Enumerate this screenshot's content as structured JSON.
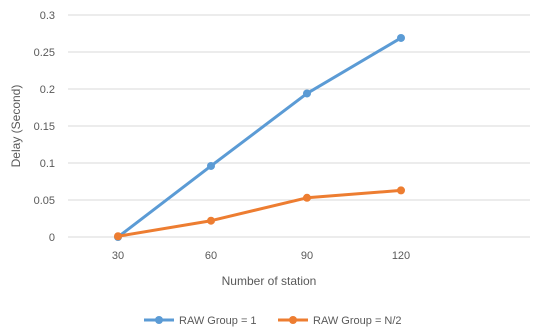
{
  "chart_data": {
    "type": "line",
    "x": [
      30,
      60,
      90,
      120
    ],
    "categories": [
      "30",
      "60",
      "90",
      "120"
    ],
    "series": [
      {
        "name": "RAW Group = 1",
        "values": [
          0.0,
          0.096,
          0.194,
          0.269
        ],
        "color": "#5b9bd5"
      },
      {
        "name": "RAW Group = N/2",
        "values": [
          0.001,
          0.022,
          0.053,
          0.063
        ],
        "color": "#ed7d31"
      }
    ],
    "title": "",
    "xlabel": "Number of station",
    "ylabel": "Delay (Second)",
    "ylim": [
      0,
      0.3
    ],
    "yticks": [
      "0",
      "0.05",
      "0.1",
      "0.15",
      "0.2",
      "0.25",
      "0.3"
    ],
    "grid": true,
    "legend_position": "bottom"
  }
}
